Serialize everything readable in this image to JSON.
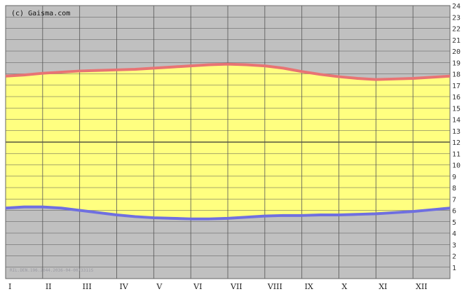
{
  "chart_data": {
    "type": "area",
    "watermark": "(c) Gaisma.com",
    "footer_text": "RIL.DEN.196.2044.2036-04-0073311S",
    "x_tick_labels": [
      "I",
      "II",
      "III",
      "IV",
      "V",
      "VI",
      "VII",
      "VIII",
      "IX",
      "X",
      "XI",
      "XII"
    ],
    "y_tick_labels": [
      "1",
      "2",
      "3",
      "4",
      "5",
      "6",
      "7",
      "8",
      "9",
      "10",
      "11",
      "12",
      "13",
      "14",
      "15",
      "16",
      "17",
      "18",
      "19",
      "20",
      "21",
      "22",
      "23",
      "24"
    ],
    "ylim": [
      0,
      24
    ],
    "grid": true,
    "colors": {
      "background": "#c0c0c0",
      "daylight": "#ffff80",
      "sunrise": "#6f6fe0",
      "sunset": "#e87474",
      "grid": "#555555"
    },
    "series": [
      {
        "role": "sunrise",
        "x": [
          0,
          0.5,
          1,
          1.5,
          2,
          2.5,
          3,
          3.5,
          4,
          4.5,
          5,
          5.5,
          6,
          6.5,
          7,
          7.5,
          8,
          8.5,
          9,
          9.5,
          10,
          10.5,
          11,
          11.5,
          12
        ],
        "values": [
          6.2,
          6.3,
          6.3,
          6.2,
          6.0,
          5.8,
          5.6,
          5.45,
          5.35,
          5.3,
          5.25,
          5.25,
          5.3,
          5.4,
          5.5,
          5.55,
          5.55,
          5.6,
          5.6,
          5.65,
          5.7,
          5.8,
          5.9,
          6.05,
          6.2
        ]
      },
      {
        "role": "sunset",
        "x": [
          0,
          0.5,
          1,
          1.5,
          2,
          2.5,
          3,
          3.5,
          4,
          4.5,
          5,
          5.5,
          6,
          6.5,
          7,
          7.5,
          8,
          8.5,
          9,
          9.5,
          10,
          10.5,
          11,
          11.5,
          12
        ],
        "values": [
          17.8,
          17.9,
          18.05,
          18.15,
          18.25,
          18.3,
          18.35,
          18.4,
          18.5,
          18.6,
          18.7,
          18.8,
          18.85,
          18.8,
          18.7,
          18.5,
          18.2,
          17.95,
          17.75,
          17.6,
          17.5,
          17.55,
          17.6,
          17.7,
          17.8
        ]
      }
    ]
  }
}
